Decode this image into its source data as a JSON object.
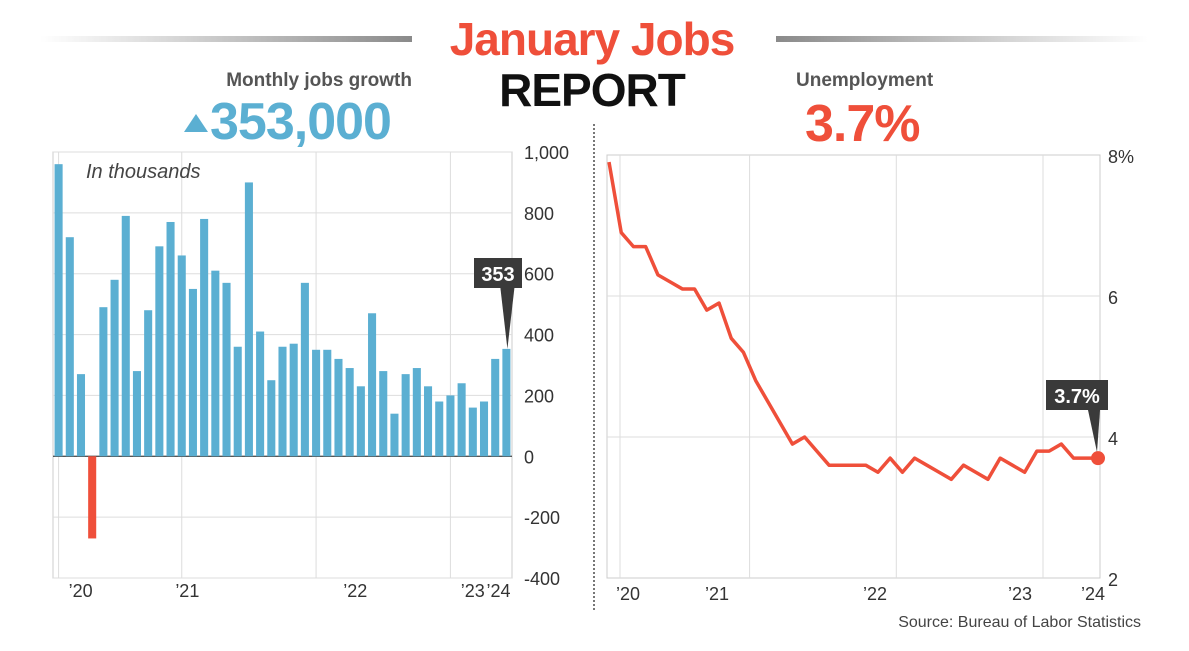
{
  "header": {
    "title_line1": "January Jobs",
    "title_line2": "REPORT",
    "jobs_label": "Monthly jobs growth",
    "jobs_value": "353,000",
    "unemployment_label": "Unemployment",
    "unemployment_value": "3.7%"
  },
  "footer": {
    "source": "Source: Bureau of Labor Statistics"
  },
  "colors": {
    "positive_bar": "#5bafd2",
    "negative_bar": "#ef4f3a",
    "line": "#ef4f3a",
    "callout_bg": "#3a3a3a"
  },
  "icons": {
    "jobs_arrow": "triangle-up-icon"
  },
  "chart_data": [
    {
      "type": "bar",
      "title": "Monthly jobs growth",
      "annotation": "In thousands",
      "callout": "353",
      "x_tick_labels": [
        "’20",
        "’21",
        "’22",
        "’23",
        "’24"
      ],
      "y_ticks": [
        1000,
        800,
        600,
        400,
        200,
        0,
        -200,
        -400
      ],
      "y_tick_labels": [
        "1,000",
        "800",
        "600",
        "400",
        "200",
        "0",
        "-200",
        "-400"
      ],
      "ylim": [
        -400,
        1000
      ],
      "grid": true,
      "values": [
        960,
        720,
        270,
        -270,
        490,
        580,
        790,
        280,
        480,
        690,
        770,
        660,
        550,
        780,
        610,
        570,
        360,
        900,
        410,
        250,
        360,
        370,
        570,
        350,
        350,
        320,
        290,
        230,
        470,
        280,
        140,
        270,
        290,
        230,
        180,
        200,
        240,
        160,
        180,
        320,
        353
      ]
    },
    {
      "type": "line",
      "title": "Unemployment",
      "callout": "3.7%",
      "x_tick_labels": [
        "’20",
        "’21",
        "’22",
        "’23",
        "’24"
      ],
      "y_ticks": [
        8,
        6,
        4,
        2
      ],
      "y_tick_labels": [
        "8%",
        "6",
        "4",
        "2"
      ],
      "ylim": [
        2,
        8
      ],
      "grid": true,
      "values": [
        7.9,
        6.9,
        6.7,
        6.7,
        6.3,
        6.2,
        6.1,
        6.1,
        5.8,
        5.9,
        5.4,
        5.2,
        4.8,
        4.5,
        4.2,
        3.9,
        4.0,
        3.8,
        3.6,
        3.6,
        3.6,
        3.6,
        3.5,
        3.7,
        3.5,
        3.7,
        3.6,
        3.5,
        3.4,
        3.6,
        3.5,
        3.4,
        3.7,
        3.6,
        3.5,
        3.8,
        3.8,
        3.9,
        3.7,
        3.7,
        3.7
      ]
    }
  ]
}
